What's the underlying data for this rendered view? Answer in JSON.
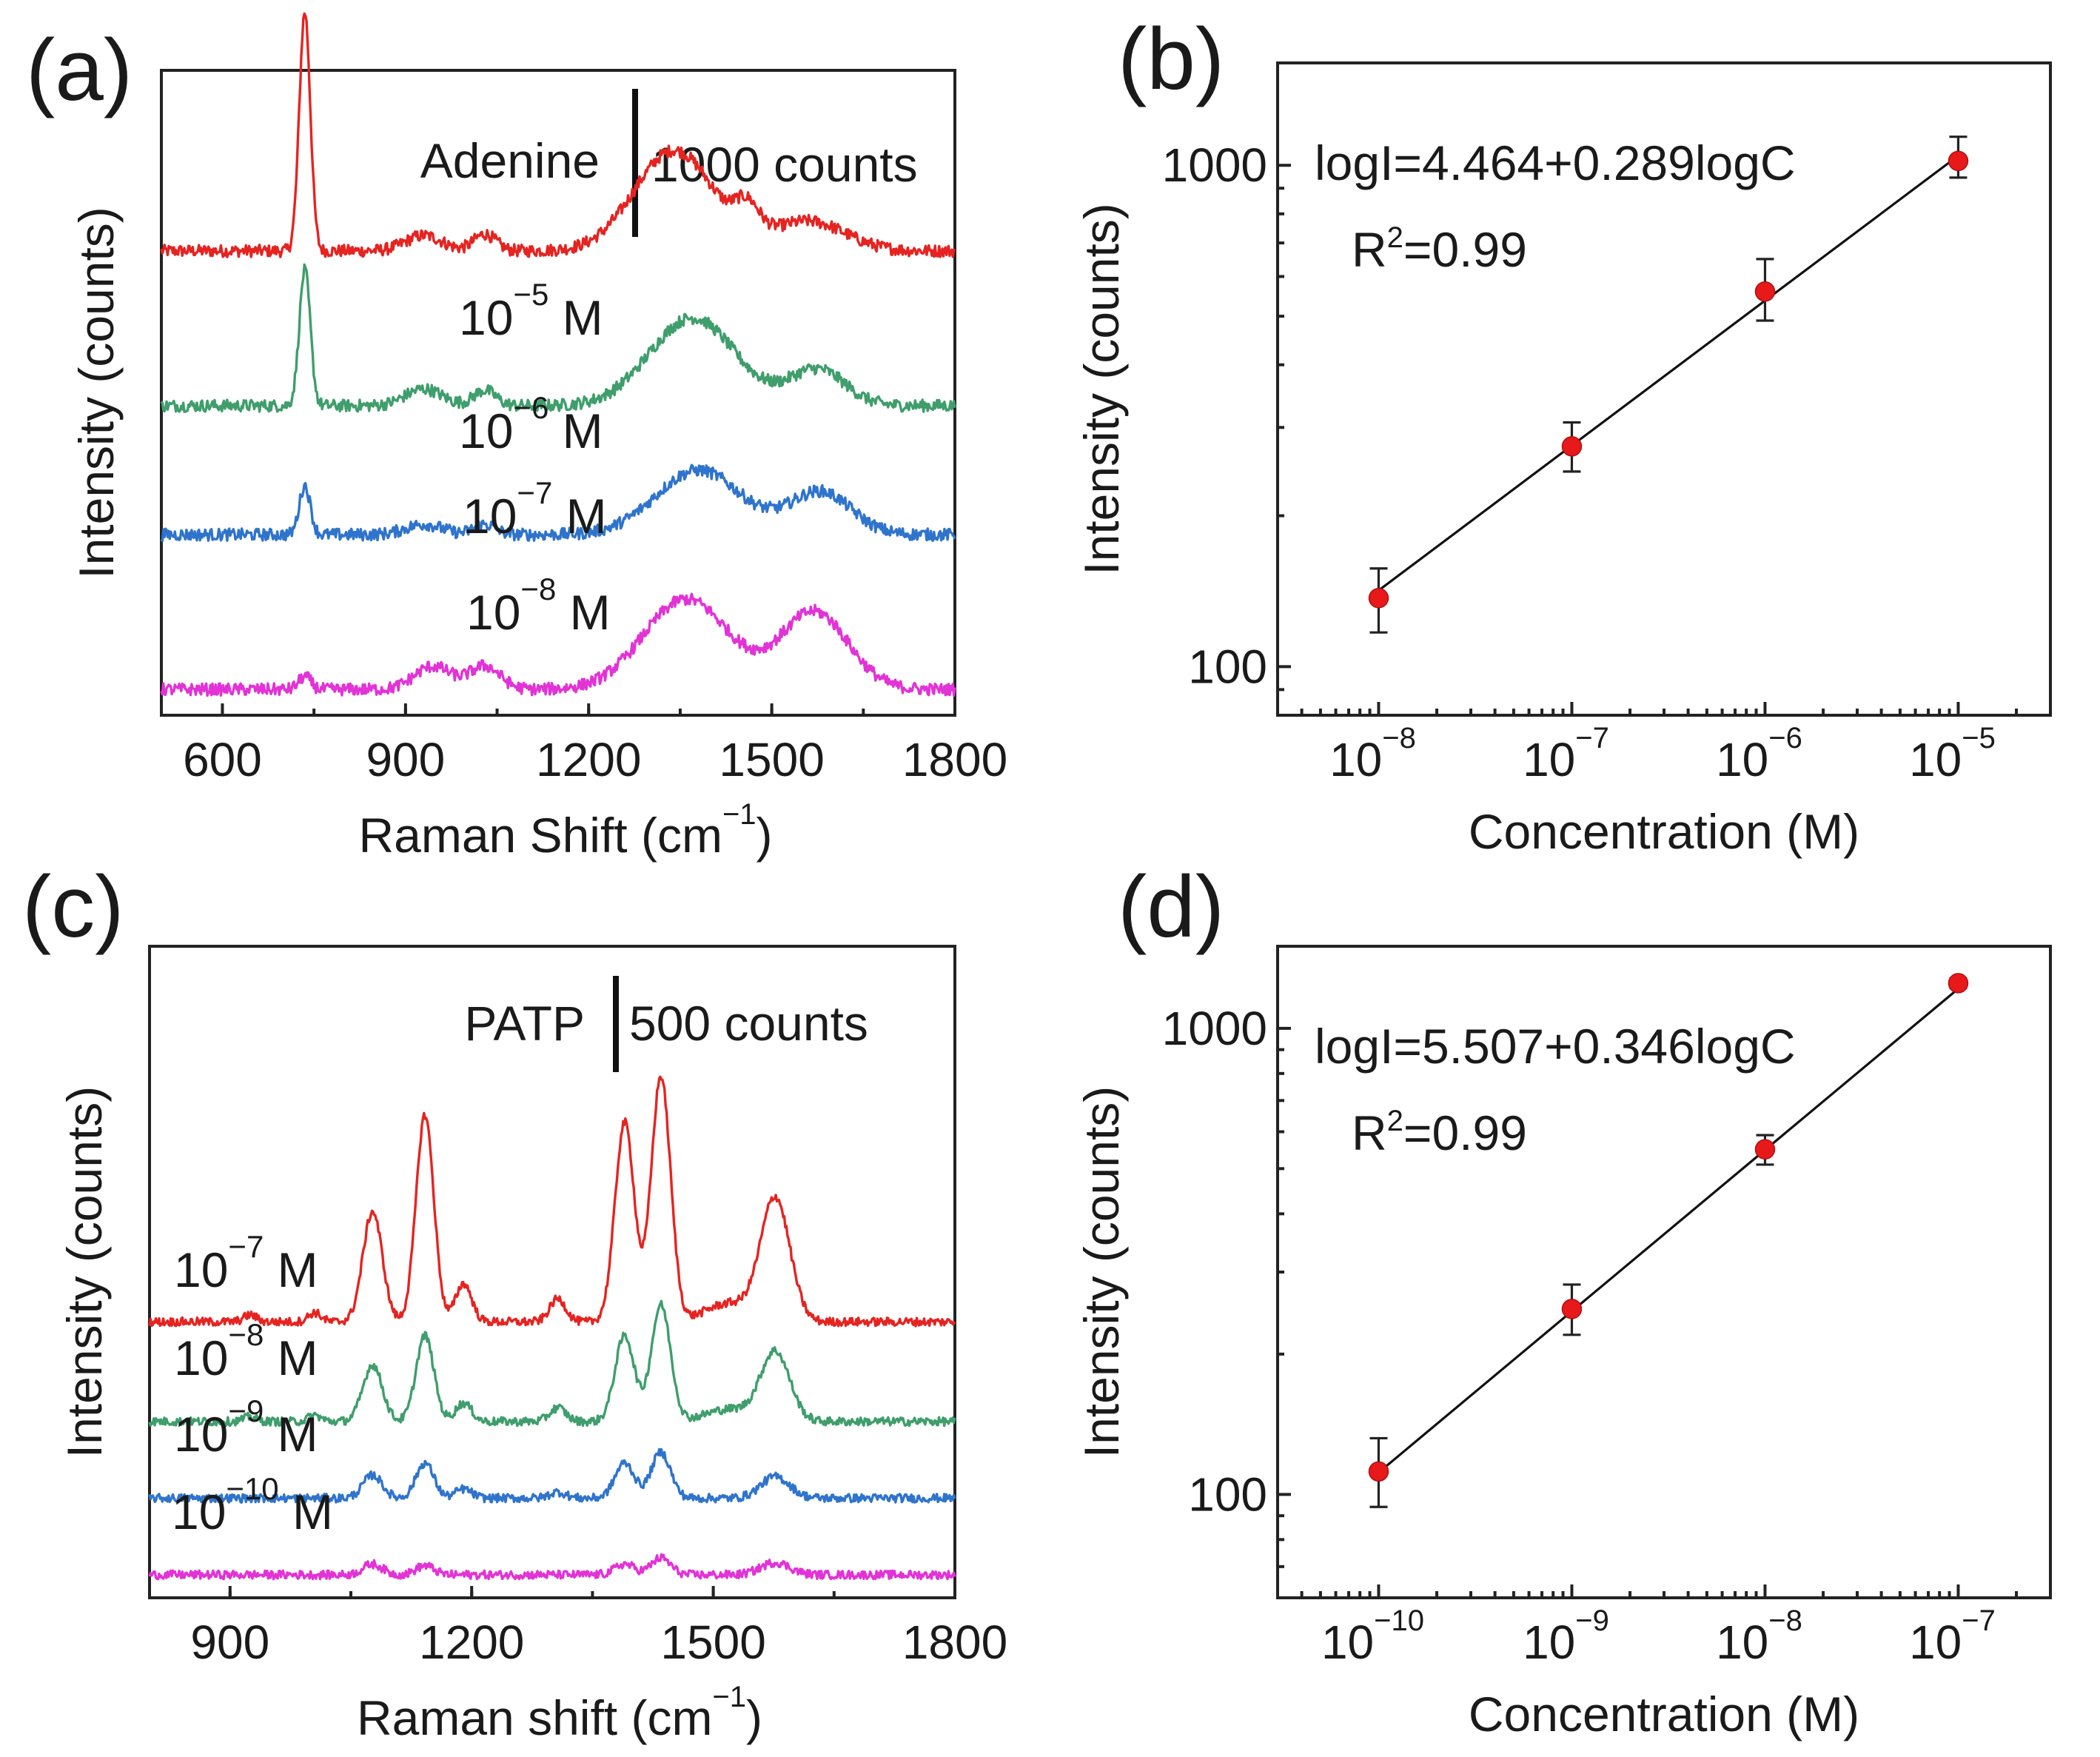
{
  "figure": {
    "panel_letters": [
      "(a)",
      "(b)",
      "(c)",
      "(d)"
    ]
  },
  "chart_data": [
    {
      "id": "a",
      "type": "line",
      "panel_label": "(a)",
      "xlabel": "Raman Shift (cm",
      "xlabel_sup": "−1",
      "xlabel_end": ")",
      "ylabel": "Intensity (counts)",
      "xlim": [
        500,
        1800
      ],
      "xticks": [
        600,
        900,
        1200,
        1500,
        1800
      ],
      "xticklabels": [
        "600",
        "900",
        "1200",
        "1500",
        "1800"
      ],
      "analyte": "Adenine",
      "scale_bar_label": "1000 counts",
      "series": [
        {
          "name": "10^-5 M",
          "base": "10",
          "exp": "−5",
          "unit": " M",
          "color": "#e52421",
          "offset": 3400,
          "peaks": [
            [
              735,
              1850,
              9
            ],
            [
              930,
              120,
              30
            ],
            [
              1030,
              130,
              18
            ],
            [
              1340,
              780,
              65
            ],
            [
              1460,
              220,
              20
            ],
            [
              1560,
              230,
              60
            ]
          ]
        },
        {
          "name": "10^-6 M",
          "base": "10",
          "exp": "−6",
          "unit": " M",
          "color": "#3f9e6c",
          "offset": 2200,
          "peaks": [
            [
              735,
              1050,
              9
            ],
            [
              930,
              130,
              30
            ],
            [
              1030,
              120,
              18
            ],
            [
              1370,
              680,
              70
            ],
            [
              1575,
              280,
              45
            ]
          ]
        },
        {
          "name": "10^-7 M",
          "base": "10",
          "exp": "−7",
          "unit": " M",
          "color": "#2f74cc",
          "offset": 1200,
          "peaks": [
            [
              735,
              380,
              9
            ],
            [
              930,
              80,
              30
            ],
            [
              1030,
              80,
              18
            ],
            [
              1380,
              500,
              70
            ],
            [
              1580,
              330,
              50
            ]
          ]
        },
        {
          "name": "10^-8 M",
          "base": "10",
          "exp": "−8",
          "unit": " M",
          "color": "#e233d6",
          "offset": 0,
          "peaks": [
            [
              735,
              100,
              10
            ],
            [
              945,
              180,
              30
            ],
            [
              1030,
              180,
              25
            ],
            [
              1360,
              700,
              70
            ],
            [
              1570,
              600,
              55
            ]
          ]
        }
      ]
    },
    {
      "id": "b",
      "type": "scatter",
      "panel_label": "(b)",
      "xlabel": "Concentration (M)",
      "ylabel": "Intensity (counts)",
      "xscale": "log",
      "yscale": "log",
      "xlim": [
        3e-09,
        3e-05
      ],
      "ylim": [
        80,
        1600
      ],
      "xtick_exponents": [
        "−8",
        "−7",
        "−6",
        "−5"
      ],
      "ytick_labels": [
        "100",
        "1000"
      ],
      "x": [
        1e-08,
        1e-07,
        1e-06,
        1e-05
      ],
      "y": [
        137,
        275,
        560,
        1020
      ],
      "yerr_low": [
        20,
        30,
        70,
        75
      ],
      "yerr_high": [
        20,
        32,
        90,
        120
      ],
      "fit": {
        "intercept": 4.464,
        "slope": 0.289,
        "equation": "logI=4.464+0.289logC",
        "r2_base": "R",
        "r2_sup": "2",
        "r2_value": "=0.99"
      }
    },
    {
      "id": "c",
      "type": "line",
      "panel_label": "(c)",
      "xlabel": "Raman shift (cm",
      "xlabel_sup": "−1",
      "xlabel_end": ")",
      "ylabel": "Intensity (counts)",
      "xlim": [
        800,
        1800
      ],
      "xticks": [
        900,
        1200,
        1500,
        1800
      ],
      "xticklabels": [
        "900",
        "1200",
        "1500",
        "1800"
      ],
      "analyte": "PATP",
      "scale_bar_label": "500 counts",
      "series": [
        {
          "name": "10^-7 M",
          "base": "10",
          "exp": "−7",
          "unit": " M",
          "color": "#e52421",
          "offset": 1650,
          "peaks": [
            [
              925,
              45,
              8
            ],
            [
              1005,
              60,
              8
            ],
            [
              1077,
              720,
              12
            ],
            [
              1142,
              1350,
              11
            ],
            [
              1190,
              250,
              10
            ],
            [
              1307,
              150,
              10
            ],
            [
              1390,
              1300,
              12
            ],
            [
              1435,
              1600,
              12
            ],
            [
              1520,
              120,
              30
            ],
            [
              1577,
              800,
              18
            ]
          ]
        },
        {
          "name": "10^-8 M",
          "base": "10",
          "exp": "−8",
          "unit": " M",
          "color": "#3f9e6c",
          "offset": 1000,
          "peaks": [
            [
              925,
              30,
              8
            ],
            [
              1005,
              40,
              8
            ],
            [
              1077,
              370,
              12
            ],
            [
              1142,
              560,
              11
            ],
            [
              1190,
              120,
              10
            ],
            [
              1307,
              90,
              10
            ],
            [
              1390,
              560,
              12
            ],
            [
              1435,
              760,
              12
            ],
            [
              1520,
              80,
              30
            ],
            [
              1577,
              450,
              18
            ]
          ]
        },
        {
          "name": "10^-9 M",
          "base": "10",
          "exp": "−9",
          "unit": " M",
          "color": "#2f74cc",
          "offset": 500,
          "peaks": [
            [
              1077,
              150,
              12
            ],
            [
              1142,
              230,
              11
            ],
            [
              1190,
              60,
              10
            ],
            [
              1307,
              40,
              10
            ],
            [
              1390,
              230,
              12
            ],
            [
              1435,
              300,
              12
            ],
            [
              1577,
              140,
              18
            ]
          ]
        },
        {
          "name": "10^-10 M",
          "base": "10",
          "exp": "−10",
          "unit": " M",
          "color": "#e233d6",
          "offset": 0,
          "peaks": [
            [
              1077,
              70,
              12
            ],
            [
              1142,
              60,
              11
            ],
            [
              1390,
              70,
              12
            ],
            [
              1435,
              110,
              12
            ],
            [
              1577,
              80,
              18
            ]
          ]
        }
      ]
    },
    {
      "id": "d",
      "type": "scatter",
      "panel_label": "(d)",
      "xlabel": "Concentration (M)",
      "ylabel": "Intensity (counts)",
      "xscale": "log",
      "yscale": "log",
      "xlim": [
        3e-11,
        3e-07
      ],
      "ylim": [
        60,
        1500
      ],
      "xtick_exponents": [
        "−10",
        "−9",
        "−8",
        "−7"
      ],
      "ytick_labels": [
        "100",
        "1000"
      ],
      "x": [
        1e-10,
        1e-09,
        1e-08,
        1e-07
      ],
      "y": [
        112,
        250,
        550,
        1250
      ],
      "yerr_low": [
        18,
        30,
        40,
        30
      ],
      "yerr_high": [
        20,
        32,
        40,
        30
      ],
      "fit": {
        "intercept": 5.507,
        "slope": 0.346,
        "equation": "logI=5.507+0.346logC",
        "r2_base": "R",
        "r2_sup": "2",
        "r2_value": "=0.99"
      }
    }
  ]
}
